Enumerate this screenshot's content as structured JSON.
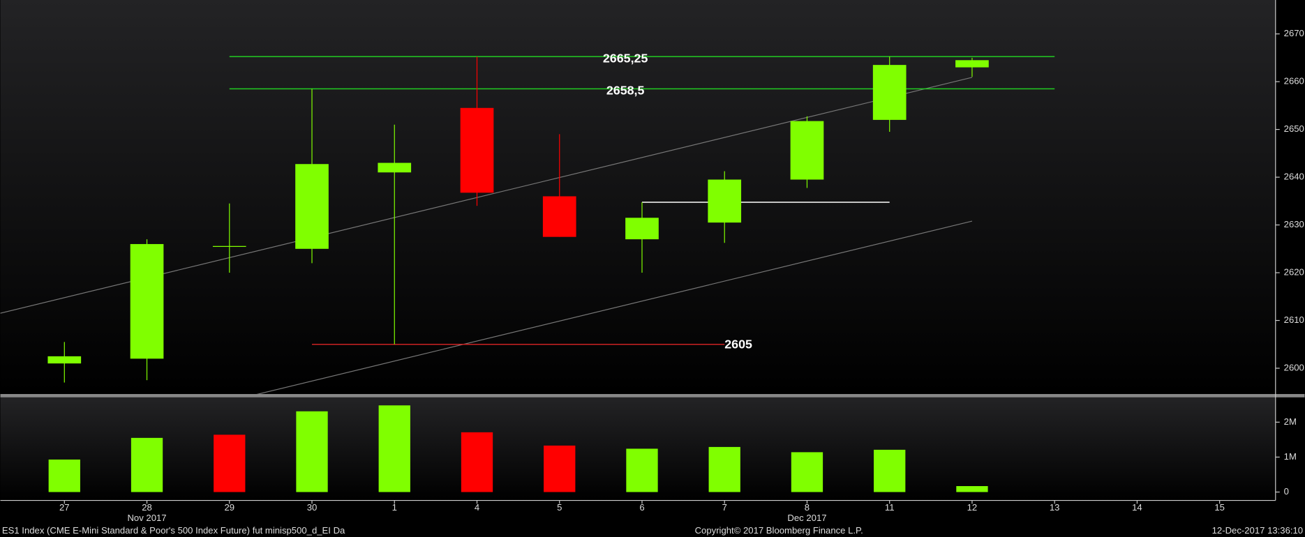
{
  "chart_data": {
    "type": "candlestick",
    "categories": [
      "27",
      "28",
      "29",
      "30",
      "1",
      "4",
      "5",
      "6",
      "7",
      "8",
      "11",
      "12",
      "13",
      "14",
      "15"
    ],
    "x_period_labels": [
      null,
      "Nov 2017",
      null,
      null,
      null,
      null,
      null,
      null,
      null,
      "Dec 2017",
      null,
      null,
      null,
      null,
      null
    ],
    "open": [
      2601,
      2602,
      2625.5,
      2625,
      2641,
      2654.5,
      2636,
      2627,
      2630.5,
      2639.5,
      2652,
      2663,
      null,
      null,
      null
    ],
    "high": [
      2605.5,
      2627,
      2634.5,
      2658.5,
      2651,
      2665.25,
      2649,
      2634.75,
      2641.25,
      2652.75,
      2665.25,
      2665,
      null,
      null,
      null
    ],
    "low": [
      2597,
      2597.5,
      2620,
      2622,
      2605,
      2634,
      2627.5,
      2620,
      2626.25,
      2637.75,
      2649.5,
      2661,
      null,
      null,
      null
    ],
    "close": [
      2602.5,
      2626,
      2625.5,
      2642.75,
      2643,
      2636.75,
      2627.5,
      2631.5,
      2639.5,
      2651.75,
      2663.5,
      2664.5,
      null,
      null,
      null
    ],
    "up_color": "#80ff00",
    "down_color": "#ff0000",
    "ylim": [
      2594.6,
      2677.1
    ],
    "yticks": [
      2600,
      2610,
      2620,
      2630,
      2640,
      2650,
      2660,
      2670
    ],
    "channel": {
      "color": "#777777",
      "upper": {
        "x": [
          -0.78,
          11
        ],
        "y": [
          2611.5,
          2660.9
        ]
      },
      "lower": {
        "x": [
          -0.78,
          11
        ],
        "y": [
          2581.5,
          2630.8
        ]
      }
    },
    "annotations": [
      {
        "value": 2665.25,
        "label": "2665,25",
        "from": 2,
        "to": 12,
        "color": "#22cc22",
        "label_position": "middle"
      },
      {
        "value": 2658.5,
        "label": "2658,5",
        "from": 2,
        "to": 12,
        "color": "#22cc22",
        "label_position": "middle"
      },
      {
        "value": 2605,
        "label": "2605",
        "from": 3,
        "to": 8,
        "color": "#cc2222",
        "label_position": "end"
      },
      {
        "value": 2634.75,
        "from": 7,
        "to": 10,
        "color": "#ffffff"
      }
    ],
    "volume": {
      "values": [
        930000,
        1550000,
        1640000,
        2310000,
        2480000,
        1710000,
        1330000,
        1240000,
        1290000,
        1140000,
        1210000,
        170000,
        null,
        null,
        null
      ],
      "colors": [
        "#80ff00",
        "#80ff00",
        "#ff0000",
        "#80ff00",
        "#80ff00",
        "#ff0000",
        "#ff0000",
        "#80ff00",
        "#80ff00",
        "#80ff00",
        "#80ff00",
        "#80ff00",
        null,
        null,
        null
      ],
      "ylim": [
        -240000,
        2710000
      ],
      "yticks": [
        0,
        {
          "value": 1000000,
          "label": "1M"
        },
        {
          "value": 2000000,
          "label": "2M"
        }
      ]
    },
    "footer": {
      "left": "ES1 Index (CME E-Mini Standard & Poor's 500 Index Future) fut minisp500_d_EI  Da",
      "center": "Copyright© 2017 Bloomberg Finance L.P.",
      "right": "12-Dec-2017 13:36:10"
    }
  }
}
